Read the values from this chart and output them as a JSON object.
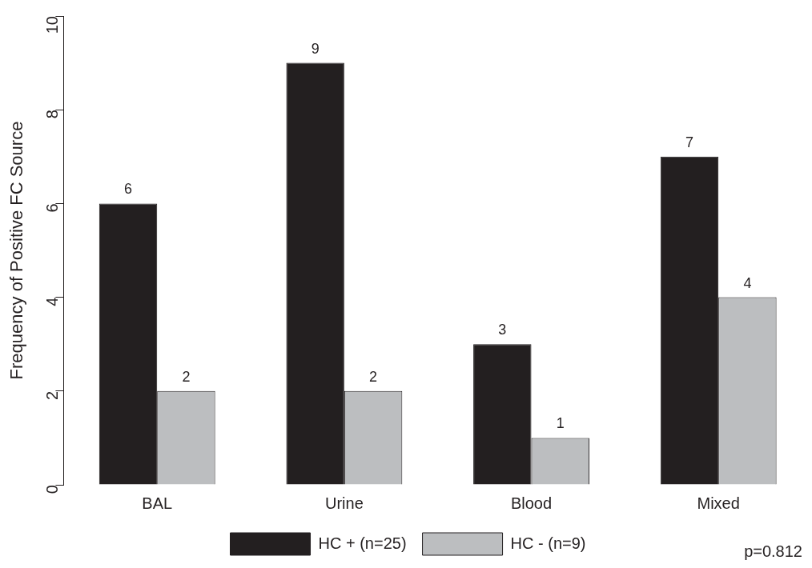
{
  "chart_data": {
    "type": "bar",
    "ylabel": "Frequency of Positive FC Source",
    "categories": [
      "BAL",
      "Urine",
      "Blood",
      "Mixed"
    ],
    "series": [
      {
        "name": "HC + (n=25)",
        "color": "#231f20",
        "values": [
          6,
          9,
          3,
          7
        ]
      },
      {
        "name": "HC - (n=9)",
        "color": "#bcbec0",
        "values": [
          2,
          2,
          1,
          4
        ]
      }
    ],
    "ylim": [
      0,
      10
    ],
    "yticks": [
      0,
      2,
      4,
      6,
      8,
      10
    ],
    "grid": false,
    "legend": "bottom",
    "data_labels": true,
    "annotations": [
      "p=0.812"
    ]
  }
}
